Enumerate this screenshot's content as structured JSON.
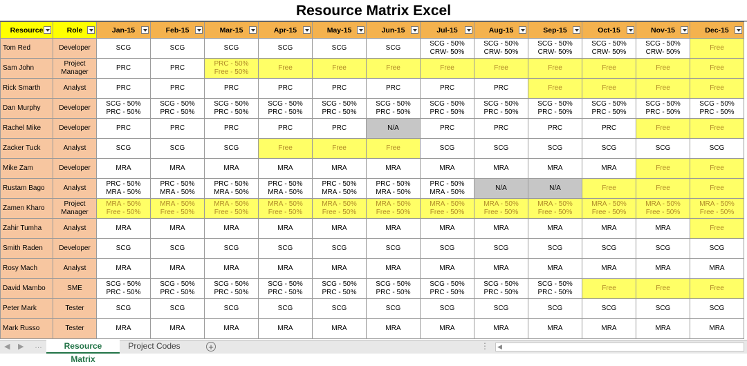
{
  "title": "Resource Matrix Excel",
  "headers": {
    "resource": "Resource",
    "role": "Role",
    "months": [
      "Jan-15",
      "Feb-15",
      "Mar-15",
      "Apr-15",
      "May-15",
      "Jun-15",
      "Jul-15",
      "Aug-15",
      "Sep-15",
      "Oct-15",
      "Nov-15",
      "Dec-15"
    ]
  },
  "rows": [
    {
      "name": "Tom Red",
      "role": "Developer",
      "cells": [
        "SCG",
        "SCG",
        "SCG",
        "SCG",
        "SCG",
        "SCG",
        "SCG - 50%\nCRW- 50%",
        "SCG - 50%\nCRW- 50%",
        "SCG - 50%\nCRW- 50%",
        "SCG - 50%\nCRW- 50%",
        "SCG - 50%\nCRW- 50%",
        "Free"
      ]
    },
    {
      "name": "Sam John",
      "role": "Project\nManager",
      "cells": [
        "PRC",
        "PRC",
        "PRC - 50%\nFree - 50%",
        "Free",
        "Free",
        "Free",
        "Free",
        "Free",
        "Free",
        "Free",
        "Free",
        "Free"
      ]
    },
    {
      "name": "Rick Smarth",
      "role": "Analyst",
      "cells": [
        "PRC",
        "PRC",
        "PRC",
        "PRC",
        "PRC",
        "PRC",
        "PRC",
        "PRC",
        "Free",
        "Free",
        "Free",
        "Free"
      ]
    },
    {
      "name": "Dan Murphy",
      "role": "Developer",
      "cells": [
        "SCG - 50%\nPRC - 50%",
        "SCG - 50%\nPRC - 50%",
        "SCG - 50%\nPRC - 50%",
        "SCG - 50%\nPRC - 50%",
        "SCG - 50%\nPRC - 50%",
        "SCG - 50%\nPRC - 50%",
        "SCG - 50%\nPRC - 50%",
        "SCG - 50%\nPRC - 50%",
        "SCG - 50%\nPRC - 50%",
        "SCG - 50%\nPRC - 50%",
        "SCG - 50%\nPRC - 50%",
        "SCG - 50%\nPRC - 50%"
      ]
    },
    {
      "name": "Rachel Mike",
      "role": "Developer",
      "cells": [
        "PRC",
        "PRC",
        "PRC",
        "PRC",
        "PRC",
        "N/A",
        "PRC",
        "PRC",
        "PRC",
        "PRC",
        "Free",
        "Free"
      ]
    },
    {
      "name": "Zacker Tuck",
      "role": "Analyst",
      "cells": [
        "SCG",
        "SCG",
        "SCG",
        "Free",
        "Free",
        "Free",
        "SCG",
        "SCG",
        "SCG",
        "SCG",
        "SCG",
        "SCG"
      ]
    },
    {
      "name": "Mike Zam",
      "role": "Developer",
      "cells": [
        "MRA",
        "MRA",
        "MRA",
        "MRA",
        "MRA",
        "MRA",
        "MRA",
        "MRA",
        "MRA",
        "MRA",
        "Free",
        "Free"
      ]
    },
    {
      "name": "Rustam Bago",
      "role": "Analyst",
      "cells": [
        "PRC - 50%\nMRA - 50%",
        "PRC - 50%\nMRA - 50%",
        "PRC - 50%\nMRA - 50%",
        "PRC - 50%\nMRA - 50%",
        "PRC - 50%\nMRA - 50%",
        "PRC - 50%\nMRA - 50%",
        "PRC - 50%\nMRA - 50%",
        "N/A",
        "N/A",
        "Free",
        "Free",
        "Free"
      ]
    },
    {
      "name": "Zamen Kharo",
      "role": "Project\nManager",
      "cells": [
        "MRA - 50%\nFree - 50%",
        "MRA - 50%\nFree - 50%",
        "MRA - 50%\nFree - 50%",
        "MRA - 50%\nFree - 50%",
        "MRA - 50%\nFree - 50%",
        "MRA - 50%\nFree - 50%",
        "MRA - 50%\nFree - 50%",
        "MRA - 50%\nFree - 50%",
        "MRA - 50%\nFree - 50%",
        "MRA - 50%\nFree - 50%",
        "MRA - 50%\nFree - 50%",
        "MRA - 50%\nFree - 50%"
      ]
    },
    {
      "name": "Zahir Tumha",
      "role": "Analyst",
      "cells": [
        "MRA",
        "MRA",
        "MRA",
        "MRA",
        "MRA",
        "MRA",
        "MRA",
        "MRA",
        "MRA",
        "MRA",
        "MRA",
        "Free"
      ]
    },
    {
      "name": "Smith Raden",
      "role": "Developer",
      "cells": [
        "SCG",
        "SCG",
        "SCG",
        "SCG",
        "SCG",
        "SCG",
        "SCG",
        "SCG",
        "SCG",
        "SCG",
        "SCG",
        "SCG"
      ]
    },
    {
      "name": "Rosy Mach",
      "role": "Analyst",
      "cells": [
        "MRA",
        "MRA",
        "MRA",
        "MRA",
        "MRA",
        "MRA",
        "MRA",
        "MRA",
        "MRA",
        "MRA",
        "MRA",
        "MRA"
      ]
    },
    {
      "name": "David Mambo",
      "role": "SME",
      "cells": [
        "SCG - 50%\nPRC - 50%",
        "SCG - 50%\nPRC - 50%",
        "SCG - 50%\nPRC - 50%",
        "SCG - 50%\nPRC - 50%",
        "SCG - 50%\nPRC - 50%",
        "SCG - 50%\nPRC - 50%",
        "SCG - 50%\nPRC - 50%",
        "SCG - 50%\nPRC - 50%",
        "SCG - 50%\nPRC - 50%",
        "Free",
        "Free",
        "Free"
      ]
    },
    {
      "name": "Peter Mark",
      "role": "Tester",
      "cells": [
        "SCG",
        "SCG",
        "SCG",
        "SCG",
        "SCG",
        "SCG",
        "SCG",
        "SCG",
        "SCG",
        "SCG",
        "SCG",
        "SCG"
      ]
    },
    {
      "name": "Mark Russo",
      "role": "Tester",
      "cells": [
        "MRA",
        "MRA",
        "MRA",
        "MRA",
        "MRA",
        "MRA",
        "MRA",
        "MRA",
        "MRA",
        "MRA",
        "MRA",
        "MRA"
      ]
    }
  ],
  "tabs": {
    "active": "Resource Matrix",
    "other": "Project Codes",
    "add_icon": "+"
  },
  "colors": {
    "header_resource": "#ffff00",
    "header_month": "#f4b24e",
    "name_fill": "#f7c6a0",
    "free_fill": "#ffff66",
    "na_fill": "#c6c6c6",
    "tab_accent": "#217346"
  }
}
